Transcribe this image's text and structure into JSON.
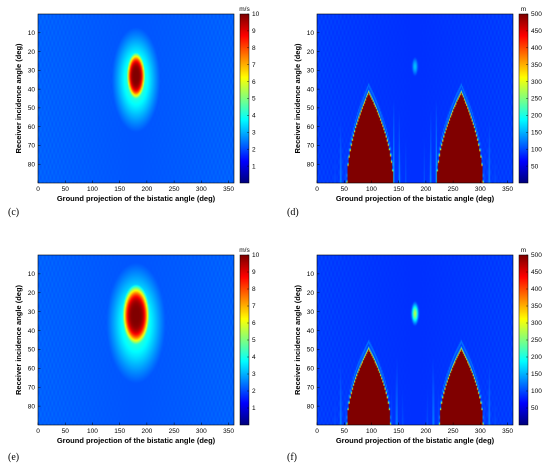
{
  "figure": {
    "panels": [
      {
        "label": "(c)",
        "xlabel": "Ground projection of the bistatic angle (deg)",
        "ylabel": "Receiver incidence angle (deg)",
        "unit": "m/s"
      },
      {
        "label": "(d)",
        "xlabel": "Ground projection of the bistatic angle (deg)",
        "ylabel": "Receiver incidence angle (deg)",
        "unit": "m"
      },
      {
        "label": "(e)",
        "xlabel": "Ground projection of the bistatic angle (deg)",
        "ylabel": "Receiver incidence angle (deg)",
        "unit": "m/s"
      },
      {
        "label": "(f)",
        "xlabel": "Ground projection of the bistatic angle (deg)",
        "ylabel": "Receiver incidence angle (deg)",
        "unit": "m"
      }
    ]
  },
  "chart_data": [
    {
      "type": "heatmap",
      "panel": "(c)",
      "quantity": "velocity",
      "colormap": "jet",
      "xlabel": "Ground projection of the bistatic angle (deg)",
      "ylabel": "Receiver incidence angle (deg)",
      "xlim": [
        0,
        360
      ],
      "ylim": [
        0,
        90
      ],
      "xticks": [
        0,
        50,
        100,
        150,
        200,
        250,
        300,
        350
      ],
      "yticks": [
        10,
        20,
        30,
        40,
        50,
        60,
        70,
        80
      ],
      "colorbar": {
        "unit": "m/s",
        "ticks": [
          1,
          2,
          3,
          4,
          5,
          6,
          7,
          8,
          9,
          10
        ],
        "range": [
          0,
          10
        ]
      },
      "features": [
        {
          "shape": "blob",
          "center": [
            180,
            33
          ],
          "half_width": 15,
          "half_height": 11,
          "peak": 10
        },
        {
          "shape": "halo",
          "center": [
            180,
            35
          ],
          "half_width": 45,
          "half_height": 28,
          "level": 4
        }
      ],
      "background": 1.2
    },
    {
      "type": "heatmap",
      "panel": "(d)",
      "quantity": "range",
      "colormap": "jet",
      "xlabel": "Ground projection of the bistatic angle (deg)",
      "ylabel": "Receiver incidence angle (deg)",
      "xlim": [
        0,
        360
      ],
      "ylim": [
        0,
        90
      ],
      "xticks": [
        0,
        50,
        100,
        150,
        200,
        250,
        300,
        350
      ],
      "yticks": [
        10,
        20,
        30,
        40,
        50,
        60,
        70,
        80
      ],
      "colorbar": {
        "unit": "m",
        "ticks": [
          50,
          100,
          150,
          200,
          250,
          300,
          350,
          400,
          450,
          500
        ],
        "range": [
          0,
          500
        ]
      },
      "features": [
        {
          "shape": "mound",
          "x_range": [
            55,
            140
          ],
          "apex_x": 95,
          "apex_y": 42,
          "value": 500
        },
        {
          "shape": "mound",
          "x_range": [
            220,
            305
          ],
          "apex_x": 265,
          "apex_y": 42,
          "value": 500
        },
        {
          "shape": "spot",
          "center": [
            180,
            28
          ],
          "value": 120
        }
      ],
      "background": 40
    },
    {
      "type": "heatmap",
      "panel": "(e)",
      "quantity": "velocity",
      "colormap": "jet",
      "xlabel": "Ground projection of the bistatic angle (deg)",
      "ylabel": "Receiver incidence angle (deg)",
      "xlim": [
        0,
        360
      ],
      "ylim": [
        0,
        90
      ],
      "xticks": [
        0,
        50,
        100,
        150,
        200,
        250,
        300,
        350
      ],
      "yticks": [
        10,
        20,
        30,
        40,
        50,
        60,
        70,
        80
      ],
      "colorbar": {
        "unit": "m/s",
        "ticks": [
          1,
          2,
          3,
          4,
          5,
          6,
          7,
          8,
          9,
          10
        ],
        "range": [
          0,
          10
        ]
      },
      "features": [
        {
          "shape": "blob",
          "center": [
            180,
            32
          ],
          "half_width": 22,
          "half_height": 14,
          "peak": 10
        },
        {
          "shape": "halo",
          "center": [
            180,
            36
          ],
          "half_width": 55,
          "half_height": 32,
          "level": 4
        }
      ],
      "background": 1.2
    },
    {
      "type": "heatmap",
      "panel": "(f)",
      "quantity": "range",
      "colormap": "jet",
      "xlabel": "Ground projection of the bistatic angle (deg)",
      "ylabel": "Receiver incidence angle (deg)",
      "xlim": [
        0,
        360
      ],
      "ylim": [
        0,
        90
      ],
      "xticks": [
        0,
        50,
        100,
        150,
        200,
        250,
        300,
        350
      ],
      "yticks": [
        10,
        20,
        30,
        40,
        50,
        60,
        70,
        80
      ],
      "colorbar": {
        "unit": "m",
        "ticks": [
          50,
          100,
          150,
          200,
          250,
          300,
          350,
          400,
          450,
          500
        ],
        "range": [
          0,
          500
        ]
      },
      "features": [
        {
          "shape": "mound",
          "x_range": [
            55,
            135
          ],
          "apex_x": 95,
          "apex_y": 50,
          "value": 500
        },
        {
          "shape": "mound",
          "x_range": [
            225,
            305
          ],
          "apex_x": 265,
          "apex_y": 50,
          "value": 500
        },
        {
          "shape": "spot",
          "center": [
            180,
            31
          ],
          "value": 250
        }
      ],
      "background": 40
    }
  ]
}
